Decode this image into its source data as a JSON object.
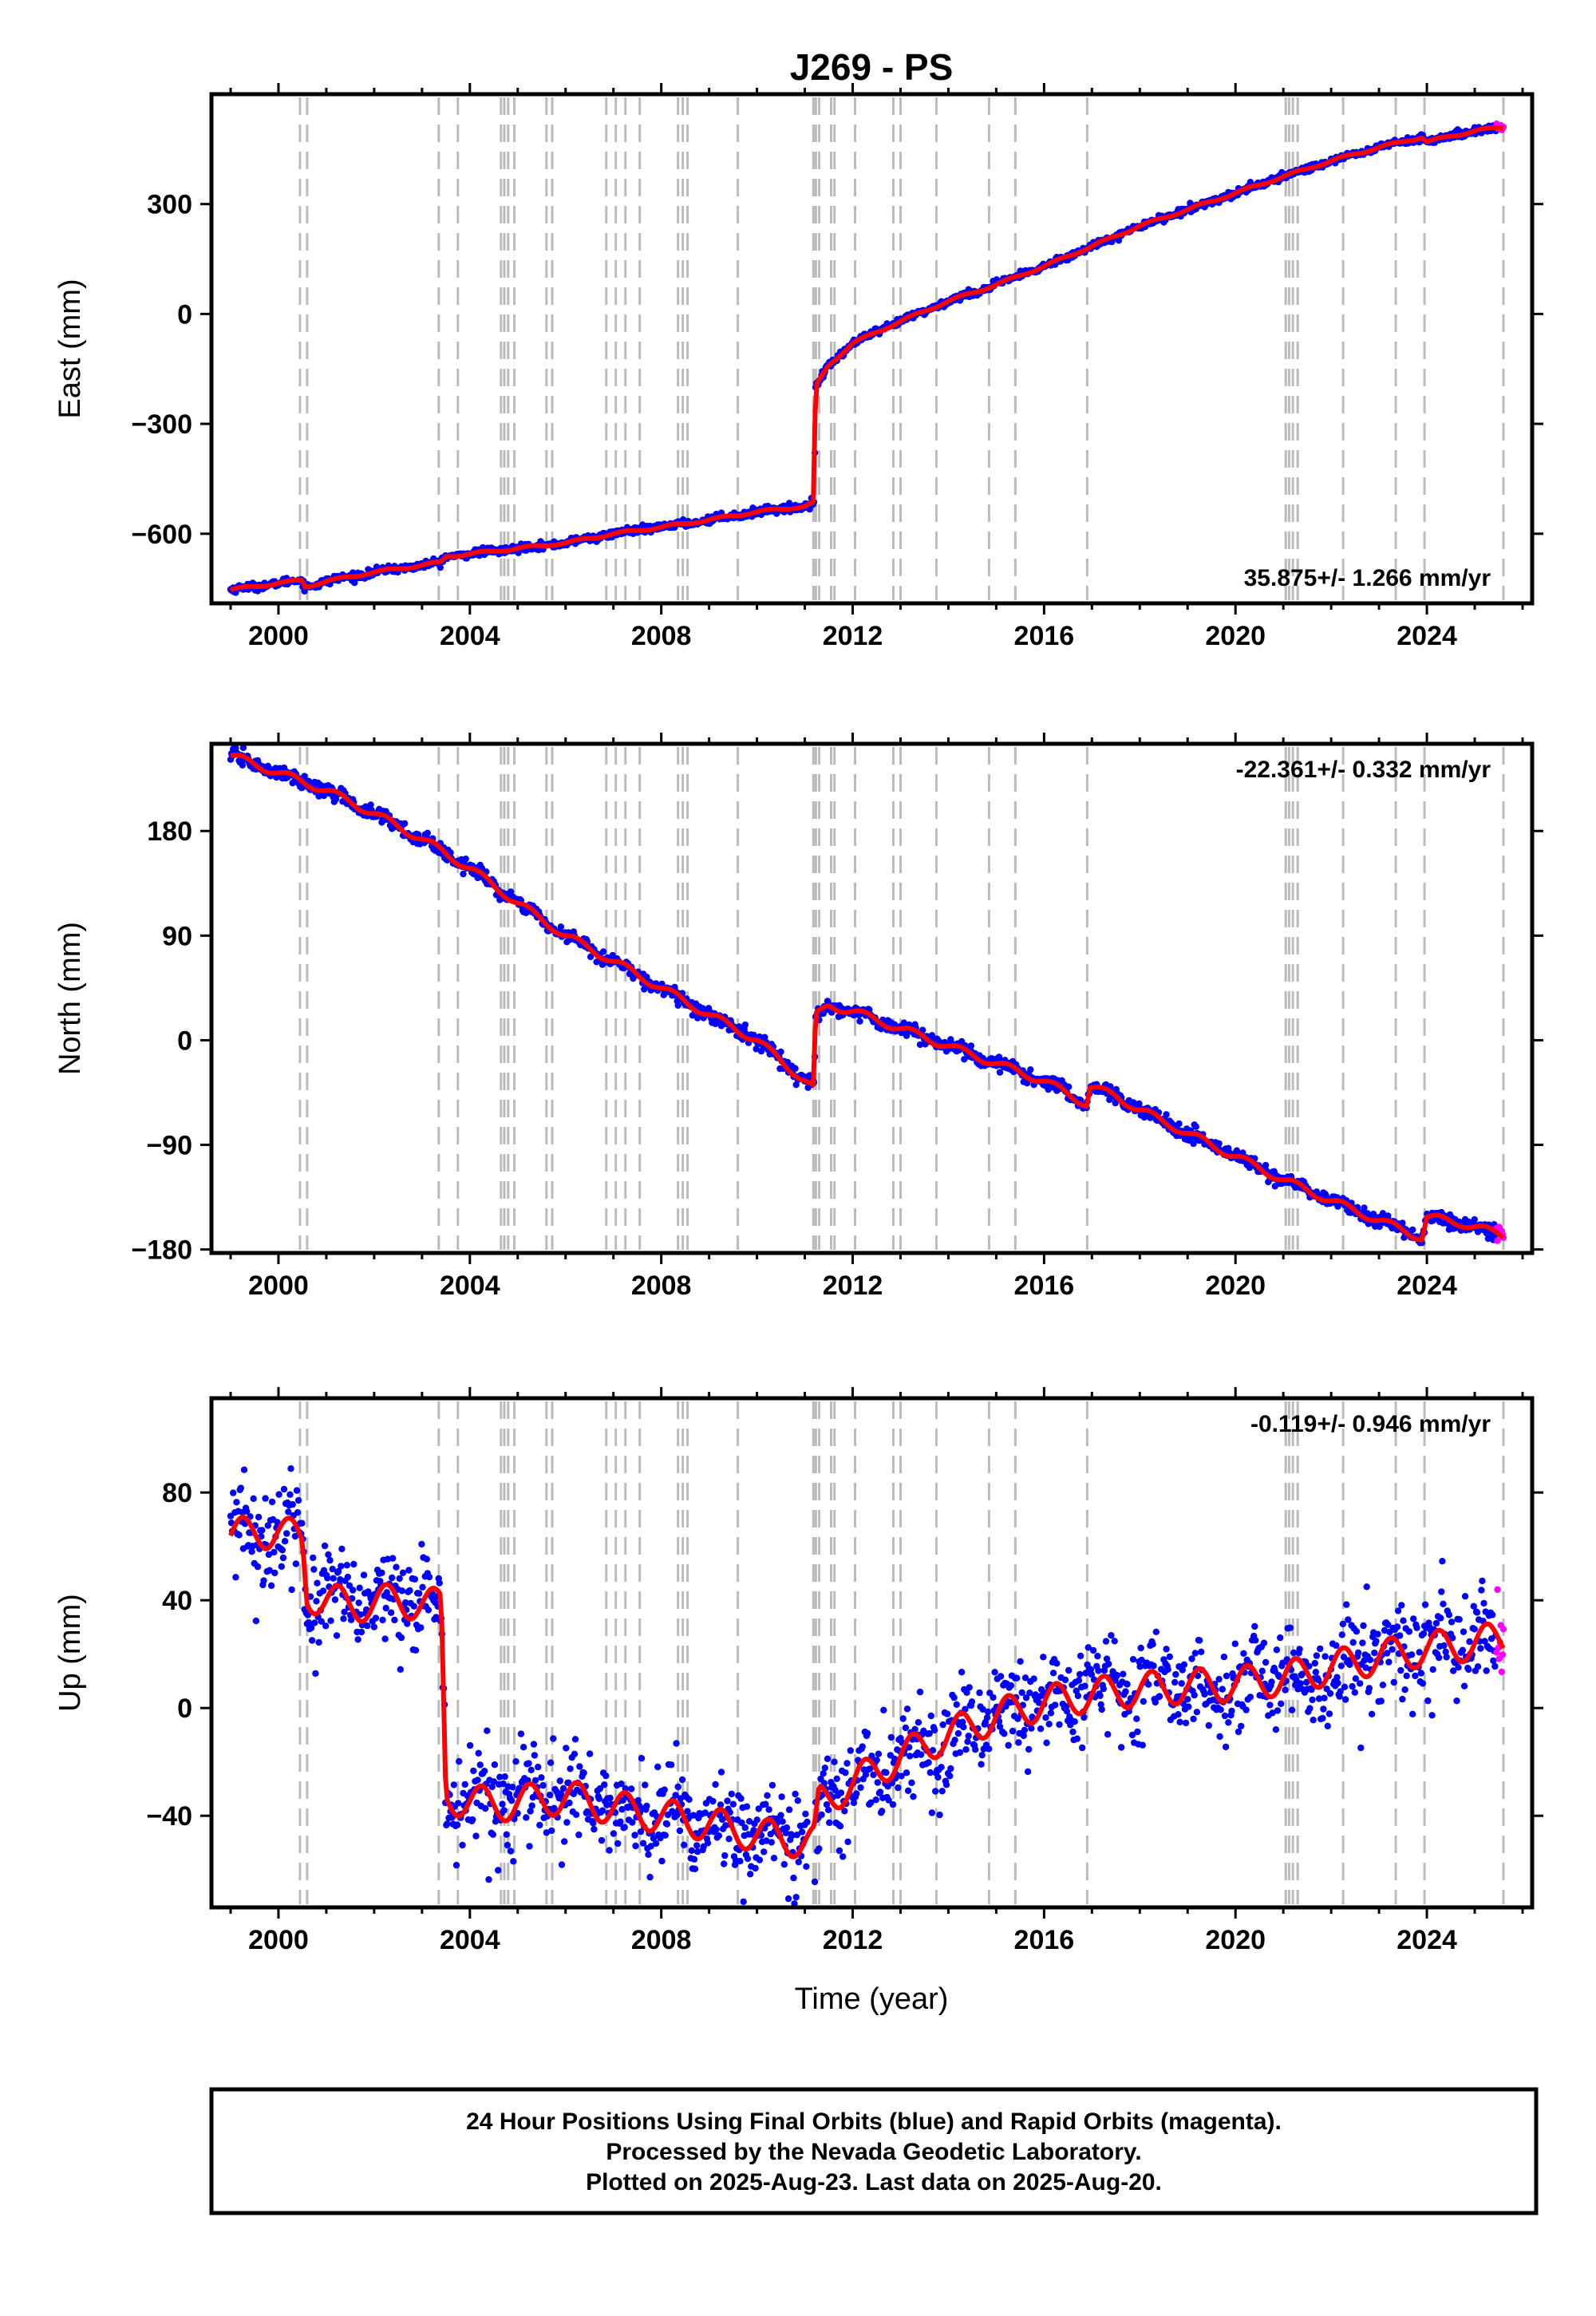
{
  "title": "J269 - PS",
  "xlabel": "Time (year)",
  "footer": [
    "24 Hour Positions Using Final Orbits (blue) and Rapid Orbits (magenta).",
    "Processed by the Nevada Geodetic Laboratory.",
    "Plotted on 2025-Aug-23. Last data on 2025-Aug-20."
  ],
  "colors": {
    "final": "#0000ff",
    "rapid": "#ff00ff",
    "model": "#ff0000",
    "events": "#bbbbbb",
    "frame": "#000000"
  },
  "chart_data": [
    {
      "type": "scatter",
      "ylabel": "East (mm)",
      "rate_label": "35.875+/- 1.266 mm/yr",
      "rate_position": "bottom-right",
      "xlim": [
        1998.6,
        2026.2
      ],
      "ylim": [
        -790,
        600
      ],
      "xticks": [
        2000,
        2004,
        2008,
        2012,
        2016,
        2020,
        2024
      ],
      "yticks": [
        -600,
        -300,
        0,
        300
      ],
      "ytick_labels": [
        "−600",
        "−300",
        "0",
        "300"
      ],
      "series": [
        {
          "values": [
            [
              1999.0,
              -753
            ],
            [
              2000.0,
              -735
            ],
            [
              2000.5,
              -727
            ],
            [
              2000.55,
              -745
            ],
            [
              2001.0,
              -730
            ],
            [
              2002.0,
              -705
            ],
            [
              2003.4,
              -678
            ],
            [
              2003.5,
              -662
            ],
            [
              2004.0,
              -655
            ],
            [
              2005.0,
              -640
            ],
            [
              2006.0,
              -625
            ],
            [
              2007.0,
              -600
            ],
            [
              2008.0,
              -582
            ],
            [
              2009.0,
              -562
            ],
            [
              2010.0,
              -540
            ],
            [
              2011.0,
              -525
            ],
            [
              2011.2,
              -515
            ],
            [
              2011.22,
              -200
            ],
            [
              2011.5,
              -140
            ],
            [
              2012.0,
              -80
            ],
            [
              2013.0,
              -20
            ],
            [
              2014.0,
              35
            ],
            [
              2015.0,
              80
            ],
            [
              2016.0,
              130
            ],
            [
              2017.0,
              185
            ],
            [
              2018.0,
              240
            ],
            [
              2019.0,
              285
            ],
            [
              2020.0,
              330
            ],
            [
              2021.0,
              375
            ],
            [
              2022.0,
              418
            ],
            [
              2023.0,
              455
            ],
            [
              2023.9,
              483
            ],
            [
              2024.0,
              470
            ],
            [
              2025.0,
              500
            ],
            [
              2025.6,
              510
            ]
          ]
        }
      ]
    },
    {
      "type": "scatter",
      "ylabel": "North (mm)",
      "rate_label": "-22.361+/- 0.332 mm/yr",
      "rate_position": "top-right",
      "xlim": [
        1998.6,
        2026.2
      ],
      "ylim": [
        -183,
        255
      ],
      "xticks": [
        2000,
        2004,
        2008,
        2012,
        2016,
        2020,
        2024
      ],
      "yticks": [
        -180,
        -90,
        0,
        90,
        180
      ],
      "ytick_labels": [
        "−180",
        "−90",
        "0",
        "90",
        "180"
      ],
      "series": [
        {
          "values": [
            [
              1999.0,
              245
            ],
            [
              2000.0,
              230
            ],
            [
              2001.0,
              215
            ],
            [
              2002.0,
              195
            ],
            [
              2003.0,
              173
            ],
            [
              2004.0,
              148
            ],
            [
              2005.0,
              118
            ],
            [
              2006.0,
              90
            ],
            [
              2007.0,
              68
            ],
            [
              2008.0,
              45
            ],
            [
              2009.0,
              22
            ],
            [
              2010.0,
              0
            ],
            [
              2011.2,
              -42
            ],
            [
              2011.22,
              20
            ],
            [
              2011.5,
              30
            ],
            [
              2012.0,
              25
            ],
            [
              2013.0,
              10
            ],
            [
              2014.0,
              -5
            ],
            [
              2015.0,
              -20
            ],
            [
              2016.0,
              -35
            ],
            [
              2016.9,
              -55
            ],
            [
              2016.95,
              -40
            ],
            [
              2017.5,
              -48
            ],
            [
              2018.0,
              -60
            ],
            [
              2019.0,
              -80
            ],
            [
              2020.0,
              -100
            ],
            [
              2021.0,
              -120
            ],
            [
              2022.0,
              -138
            ],
            [
              2023.0,
              -155
            ],
            [
              2023.9,
              -170
            ],
            [
              2024.0,
              -152
            ],
            [
              2024.8,
              -158
            ],
            [
              2025.6,
              -168
            ]
          ]
        }
      ]
    },
    {
      "type": "scatter",
      "ylabel": "Up (mm)",
      "rate_label": "-0.119+/- 0.946 mm/yr",
      "rate_position": "top-right",
      "xlim": [
        1998.6,
        2026.2
      ],
      "ylim": [
        -74,
        115
      ],
      "xticks": [
        2000,
        2004,
        2008,
        2012,
        2016,
        2020,
        2024
      ],
      "yticks": [
        -40,
        0,
        40,
        80
      ],
      "ytick_labels": [
        "−40",
        "0",
        "40",
        "80"
      ],
      "series": [
        {
          "values": [
            [
              1999.0,
              64
            ],
            [
              2000.0,
              66
            ],
            [
              2000.5,
              62
            ],
            [
              2000.6,
              42
            ],
            [
              2001.5,
              38
            ],
            [
              2002.5,
              40
            ],
            [
              2003.3,
              38
            ],
            [
              2003.4,
              38
            ],
            [
              2003.5,
              -33
            ],
            [
              2004.5,
              -36
            ],
            [
              2006.0,
              -33
            ],
            [
              2007.0,
              -37
            ],
            [
              2008.0,
              -40
            ],
            [
              2009.0,
              -43
            ],
            [
              2010.0,
              -47
            ],
            [
              2011.2,
              -50
            ],
            [
              2011.3,
              -35
            ],
            [
              2012.0,
              -28
            ],
            [
              2013.0,
              -18
            ],
            [
              2014.0,
              -10
            ],
            [
              2015.0,
              -3
            ],
            [
              2016.0,
              2
            ],
            [
              2017.0,
              5
            ],
            [
              2018.0,
              7
            ],
            [
              2019.0,
              8
            ],
            [
              2020.0,
              9
            ],
            [
              2021.0,
              11
            ],
            [
              2022.0,
              15
            ],
            [
              2023.0,
              19
            ],
            [
              2024.0,
              22
            ],
            [
              2025.0,
              24
            ],
            [
              2025.6,
              26
            ]
          ]
        }
      ]
    }
  ],
  "event_years": [
    2000.45,
    2000.6,
    2003.35,
    2003.75,
    2004.65,
    2004.72,
    2004.8,
    2004.93,
    2005.6,
    2005.72,
    2006.85,
    2007.05,
    2007.25,
    2007.55,
    2008.35,
    2008.45,
    2008.55,
    2009.6,
    2011.18,
    2011.23,
    2011.3,
    2011.55,
    2011.62,
    2012.05,
    2012.85,
    2013.0,
    2013.75,
    2014.85,
    2015.4,
    2016.9,
    2021.05,
    2021.12,
    2021.2,
    2021.3,
    2022.25,
    2023.35,
    2023.95,
    2025.6
  ]
}
